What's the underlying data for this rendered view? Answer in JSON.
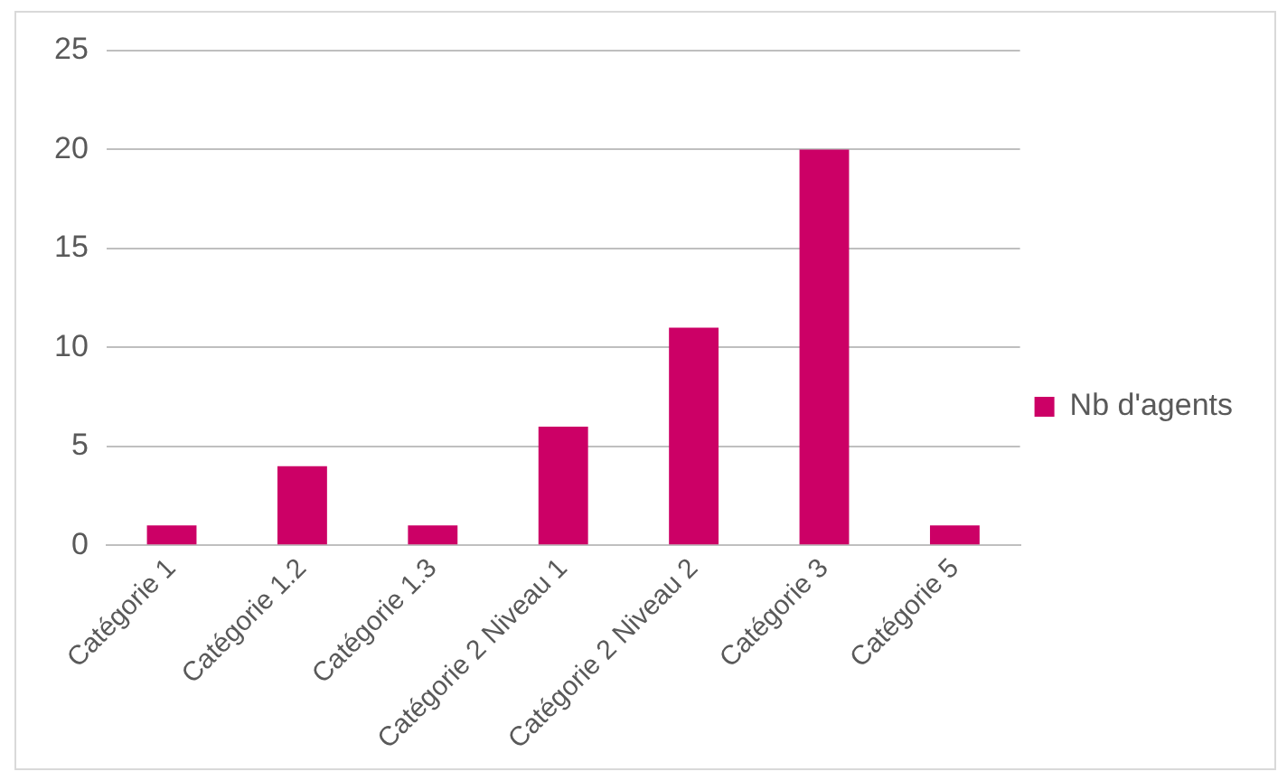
{
  "chart_data": {
    "type": "bar",
    "categories": [
      "Catégorie 1",
      "Catégorie 1.2",
      "Catégorie 1.3",
      "Catégorie 2 Niveau 1",
      "Catégorie 2 Niveau 2",
      "Catégorie 3",
      "Catégorie 5"
    ],
    "series": [
      {
        "name": "Nb d'agents",
        "color": "#cc0066",
        "values": [
          1,
          4,
          1,
          6,
          11,
          20,
          1
        ]
      }
    ],
    "ylim": [
      0,
      25
    ],
    "yticks": [
      0,
      5,
      10,
      15,
      20,
      25
    ],
    "grid": "y",
    "legend": "right"
  }
}
